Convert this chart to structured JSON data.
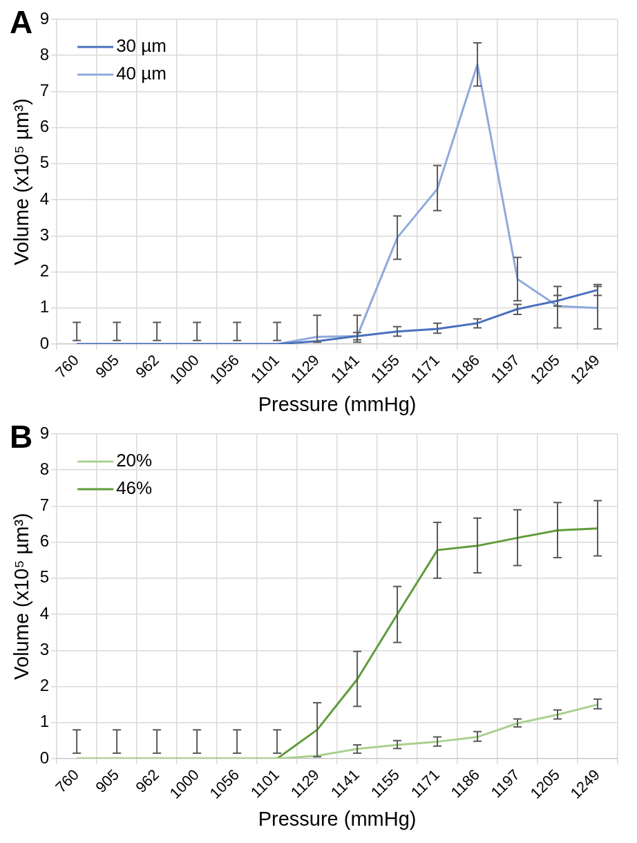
{
  "chart_data": [
    {
      "type": "line",
      "title": "A",
      "xlabel": "Pressure (mmHg)",
      "ylabel": "Volume (x10⁵ µm³)",
      "categories": [
        "760",
        "905",
        "962",
        "1000",
        "1056",
        "1101",
        "1129",
        "1141",
        "1155",
        "1171",
        "1186",
        "1197",
        "1205",
        "1249"
      ],
      "ylim": [
        0,
        9
      ],
      "yticks": [
        0,
        1,
        2,
        3,
        4,
        5,
        6,
        7,
        8,
        9
      ],
      "grid": true,
      "legend": "top left",
      "series": [
        {
          "name": "30 µm",
          "color": "#4a70be",
          "values": [
            0,
            0,
            0,
            0,
            0,
            0,
            0.08,
            0.22,
            0.35,
            0.42,
            0.58,
            0.97,
            1.2,
            1.5
          ],
          "errors": [
            null,
            null,
            null,
            null,
            null,
            null,
            null,
            [
              0.12,
              0.32
            ],
            [
              0.22,
              0.48
            ],
            [
              0.3,
              0.58
            ],
            [
              0.45,
              0.7
            ],
            [
              0.82,
              1.1
            ],
            [
              1.05,
              1.35
            ],
            [
              1.35,
              1.65
            ]
          ]
        },
        {
          "name": "40 µm",
          "color": "#8fa9dc",
          "values": [
            0,
            0,
            0,
            0,
            0,
            0,
            0.2,
            0.22,
            2.95,
            4.3,
            7.75,
            1.8,
            1.05,
            1.0
          ],
          "errors": [
            [
              0.1,
              0.6
            ],
            [
              0.1,
              0.6
            ],
            [
              0.1,
              0.6
            ],
            [
              0.1,
              0.6
            ],
            [
              0.1,
              0.6
            ],
            [
              0.1,
              0.6
            ],
            [
              0.05,
              0.8
            ],
            [
              0.05,
              0.8
            ],
            [
              2.35,
              3.55
            ],
            [
              3.7,
              4.95
            ],
            [
              7.15,
              8.35
            ],
            [
              1.2,
              2.4
            ],
            [
              0.45,
              1.6
            ],
            [
              0.42,
              1.6
            ]
          ]
        }
      ]
    },
    {
      "type": "line",
      "title": "B",
      "xlabel": "Pressure (mmHg)",
      "ylabel": "Volume (x10⁵ µm³)",
      "categories": [
        "760",
        "905",
        "962",
        "1000",
        "1056",
        "1101",
        "1129",
        "1141",
        "1155",
        "1171",
        "1186",
        "1197",
        "1205",
        "1249"
      ],
      "ylim": [
        0,
        9
      ],
      "yticks": [
        0,
        1,
        2,
        3,
        4,
        5,
        6,
        7,
        8,
        9
      ],
      "grid": true,
      "legend": "top left",
      "series": [
        {
          "name": "20%",
          "color": "#a9d18e",
          "values": [
            0,
            0,
            0,
            0,
            0,
            0,
            0.08,
            0.27,
            0.38,
            0.47,
            0.6,
            0.98,
            1.22,
            1.5
          ],
          "errors": [
            null,
            null,
            null,
            null,
            null,
            null,
            null,
            [
              0.15,
              0.38
            ],
            [
              0.28,
              0.5
            ],
            [
              0.35,
              0.6
            ],
            [
              0.48,
              0.75
            ],
            [
              0.88,
              1.1
            ],
            [
              1.1,
              1.35
            ],
            [
              1.38,
              1.65
            ]
          ]
        },
        {
          "name": "46%",
          "color": "#5e9c3a",
          "values": [
            0,
            0,
            0,
            0,
            0,
            0,
            0.8,
            2.2,
            4.0,
            5.78,
            5.9,
            6.12,
            6.33,
            6.38
          ],
          "errors": [
            [
              0.15,
              0.8
            ],
            [
              0.15,
              0.8
            ],
            [
              0.15,
              0.8
            ],
            [
              0.15,
              0.8
            ],
            [
              0.15,
              0.8
            ],
            [
              0.15,
              0.8
            ],
            [
              0.05,
              1.55
            ],
            [
              1.45,
              2.97
            ],
            [
              3.22,
              4.77
            ],
            [
              5.0,
              6.55
            ],
            [
              5.15,
              6.67
            ],
            [
              5.35,
              6.9
            ],
            [
              5.57,
              7.1
            ],
            [
              5.62,
              7.15
            ]
          ]
        }
      ]
    }
  ]
}
